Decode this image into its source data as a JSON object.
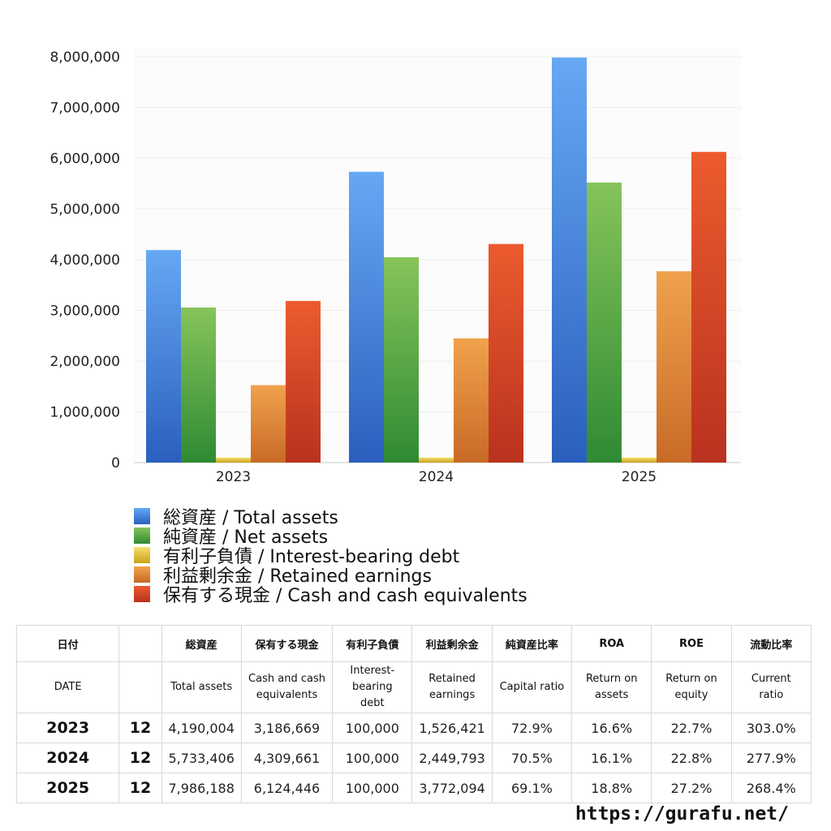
{
  "chart_data": {
    "type": "bar",
    "categories": [
      "2023",
      "2024",
      "2025"
    ],
    "ylim": [
      0,
      8000000
    ],
    "y_ticks": [
      "0",
      "1,000,000",
      "2,000,000",
      "3,000,000",
      "4,000,000",
      "5,000,000",
      "6,000,000",
      "7,000,000",
      "8,000,000"
    ],
    "grid": true,
    "legend_position": "bottom",
    "series": [
      {
        "name": "総資産 / Total assets",
        "values": [
          4190004,
          5733406,
          7986188
        ],
        "color_top": "#66a8f4",
        "color_bottom": "#2a5fbe"
      },
      {
        "name": "純資産 / Net assets",
        "values": [
          3057000,
          4048000,
          5521000
        ],
        "color_top": "#86c45a",
        "color_bottom": "#2f8a34"
      },
      {
        "name": "有利子負債 / Interest-bearing debt",
        "values": [
          100000,
          100000,
          100000
        ],
        "color_top": "#f5e070",
        "color_bottom": "#c9a21c"
      },
      {
        "name": "利益剰余金 / Retained earnings",
        "values": [
          1526421,
          2449793,
          3772094
        ],
        "color_top": "#f0a24c",
        "color_bottom": "#c86a26"
      },
      {
        "name": "保有する現金 /  Cash and cash equivalents",
        "values": [
          3186669,
          4309661,
          6124446
        ],
        "color_top": "#ec5b2e",
        "color_bottom": "#b9321f"
      }
    ]
  },
  "table": {
    "header_jp": [
      "日付",
      "",
      "総資産",
      "保有する現金",
      "有利子負債",
      "利益剰余金",
      "純資産比率",
      "ROA",
      "ROE",
      "流動比率"
    ],
    "header_en": [
      "DATE",
      "",
      "Total assets",
      "Cash and cash\nequivalents",
      "Interest-\nbearing\ndebt",
      "Retained\nearnings",
      "Capital ratio",
      "Return on\nassets",
      "Return on\nequity",
      "Current\nratio"
    ],
    "rows": [
      [
        "2023",
        "12",
        "4,190,004",
        "3,186,669",
        "100,000",
        "1,526,421",
        "72.9%",
        "16.6%",
        "22.7%",
        "303.0%"
      ],
      [
        "2024",
        "12",
        "5,733,406",
        "4,309,661",
        "100,000",
        "2,449,793",
        "70.5%",
        "16.1%",
        "22.8%",
        "277.9%"
      ],
      [
        "2025",
        "12",
        "7,986,188",
        "6,124,446",
        "100,000",
        "3,772,094",
        "69.1%",
        "18.8%",
        "27.2%",
        "268.4%"
      ]
    ]
  },
  "footer": {
    "url": "https://gurafu.net/"
  }
}
